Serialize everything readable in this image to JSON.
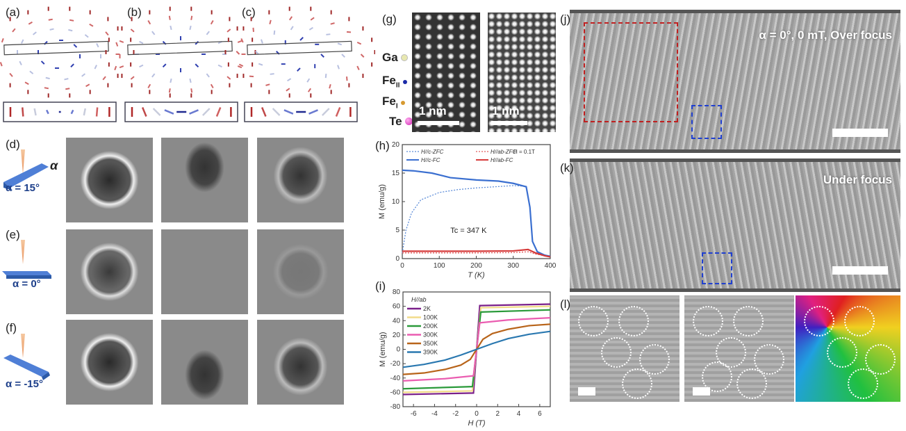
{
  "panels": {
    "a": "(a)",
    "b": "(b)",
    "c": "(c)",
    "d": "(d)",
    "e": "(e)",
    "f": "(f)",
    "g": "(g)",
    "h": "(h)",
    "i": "(i)",
    "j": "(j)",
    "k": "(k)",
    "l": "(l)"
  },
  "tilt": {
    "alpha_symbol": "α",
    "d": "α = 15°",
    "e": "α = 0°",
    "f": "α = -15°"
  },
  "elements": {
    "ga": "Ga",
    "fe2": "Fe",
    "fe2_sub": "II",
    "fe1": "Fe",
    "fe1_sub": "I",
    "te": "Te"
  },
  "element_colors": {
    "ga": "#e8e8b0",
    "fe2": "#1a2aa8",
    "fe1": "#d79a30",
    "te": "#e040c0"
  },
  "scalebar": {
    "g1": "1 nm",
    "g2": "1 nm"
  },
  "ltem": {
    "j_text": "α = 0°, 0 mT, Over focus",
    "k_text": "Under focus"
  },
  "chart_data": [
    {
      "type": "line",
      "panel": "h",
      "xlabel": "T (K)",
      "ylabel": "M (emu/g)",
      "xlim": [
        0,
        400
      ],
      "ylim": [
        0,
        20
      ],
      "xticks": [
        0,
        100,
        200,
        300,
        400
      ],
      "yticks": [
        0,
        5,
        10,
        15,
        20
      ],
      "annotation": "Tc = 347 K",
      "field_label": "H = 0.1T",
      "legend": "top",
      "series": [
        {
          "name": "H//c-ZFC",
          "color": "#5b8bd8",
          "dash": true,
          "points": [
            [
              0,
              1
            ],
            [
              10,
              5
            ],
            [
              25,
              8
            ],
            [
              50,
              10.3
            ],
            [
              100,
              11.6
            ],
            [
              150,
              12.1
            ],
            [
              200,
              12.4
            ],
            [
              250,
              12.6
            ],
            [
              300,
              12.8
            ],
            [
              335,
              12.7
            ]
          ]
        },
        {
          "name": "H//ab-ZFC",
          "color": "#e05a5a",
          "dash": true,
          "points": [
            [
              0,
              1
            ],
            [
              100,
              1
            ],
            [
              200,
              1
            ],
            [
              300,
              1.05
            ],
            [
              340,
              1.2
            ],
            [
              360,
              0.8
            ],
            [
              400,
              0.3
            ]
          ]
        },
        {
          "name": "H//c-FC",
          "color": "#3a6fd0",
          "dash": false,
          "points": [
            [
              0,
              15.5
            ],
            [
              30,
              15.4
            ],
            [
              80,
              15
            ],
            [
              130,
              14.2
            ],
            [
              200,
              13.8
            ],
            [
              260,
              13.6
            ],
            [
              300,
              13.2
            ],
            [
              335,
              12.6
            ],
            [
              345,
              9
            ],
            [
              352,
              3
            ],
            [
              365,
              1.2
            ],
            [
              385,
              0.6
            ],
            [
              400,
              0.4
            ]
          ]
        },
        {
          "name": "H//ab-FC",
          "color": "#d63a3a",
          "dash": false,
          "points": [
            [
              0,
              1.3
            ],
            [
              100,
              1.3
            ],
            [
              200,
              1.3
            ],
            [
              300,
              1.35
            ],
            [
              340,
              1.6
            ],
            [
              360,
              1
            ],
            [
              385,
              0.5
            ],
            [
              400,
              0.3
            ]
          ]
        }
      ]
    },
    {
      "type": "line",
      "panel": "i",
      "xlabel": "H (T)",
      "ylabel": "M (emu/g)",
      "xlim": [
        -7,
        7
      ],
      "ylim": [
        -80,
        80
      ],
      "xticks": [
        -6,
        -4,
        -2,
        0,
        2,
        4,
        6
      ],
      "yticks": [
        -80,
        -60,
        -40,
        -20,
        0,
        20,
        40,
        60,
        80
      ],
      "legend_title": "H//ab",
      "legend": "top-left",
      "series": [
        {
          "name": "2K",
          "color": "#7a1f8a",
          "points": [
            [
              -7,
              -63
            ],
            [
              -0.3,
              -61
            ],
            [
              0.3,
              61
            ],
            [
              7,
              63
            ]
          ]
        },
        {
          "name": "100K",
          "color": "#f2dc8a",
          "points": [
            [
              -7,
              -60
            ],
            [
              -0.4,
              -58
            ],
            [
              0.4,
              58
            ],
            [
              7,
              60
            ]
          ]
        },
        {
          "name": "200K",
          "color": "#2a9a3a",
          "points": [
            [
              -7,
              -55
            ],
            [
              -0.4,
              -52
            ],
            [
              0.4,
              52
            ],
            [
              7,
              55
            ]
          ]
        },
        {
          "name": "300K",
          "color": "#ea5cb0",
          "points": [
            [
              -7,
              -44
            ],
            [
              -3,
              -41
            ],
            [
              -0.3,
              -37
            ],
            [
              0.3,
              37
            ],
            [
              3,
              41
            ],
            [
              7,
              44
            ]
          ]
        },
        {
          "name": "350K",
          "color": "#b8641a",
          "points": [
            [
              -7,
              -35
            ],
            [
              -5,
              -33
            ],
            [
              -3,
              -28
            ],
            [
              -1.5,
              -22
            ],
            [
              -0.6,
              -14
            ],
            [
              0,
              0
            ],
            [
              0.6,
              14
            ],
            [
              1.5,
              22
            ],
            [
              3,
              28
            ],
            [
              5,
              33
            ],
            [
              7,
              35
            ]
          ]
        },
        {
          "name": "390K",
          "color": "#2a78b0",
          "points": [
            [
              -7,
              -25
            ],
            [
              -5,
              -21
            ],
            [
              -3,
              -15
            ],
            [
              -1.5,
              -8
            ],
            [
              0,
              0
            ],
            [
              1.5,
              8
            ],
            [
              3,
              15
            ],
            [
              5,
              21
            ],
            [
              7,
              25
            ]
          ]
        }
      ]
    }
  ]
}
